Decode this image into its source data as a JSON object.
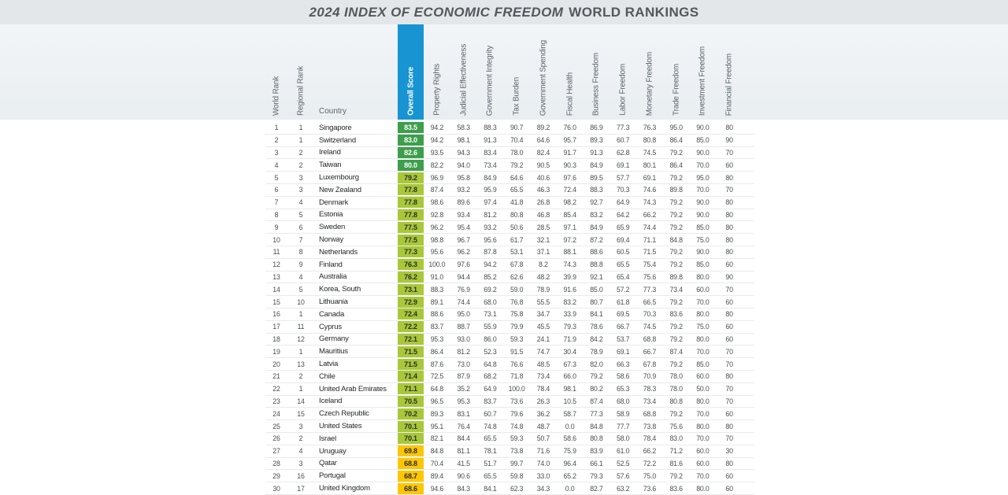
{
  "title": {
    "main": "2024 INDEX OF ECONOMIC FREEDOM",
    "suffix": "WORLD RANKINGS"
  },
  "colors": {
    "title_band_bg": "#e3e7e9",
    "header_band_bg": "#eef2f5",
    "header_highlight_blue": "#1794d1",
    "score_green_dark": "#3d9e4c",
    "score_green_dark_text": "#ffffff",
    "score_green_light": "#a9c839",
    "score_yellow": "#fcc605",
    "score_light_text": "#2c2e2f"
  },
  "chart_data": {
    "type": "table",
    "title": "2024 INDEX OF ECONOMIC FREEDOM WORLD RANKINGS",
    "legend_note": "Overall Score cell color tiers: high = dark green (80+), mid = light green (70-79.9), low = yellow (60-69.9)",
    "columns": [
      "World Rank",
      "Regional Rank",
      "Country",
      "Overall Score",
      "Property Rights",
      "Judicial Effectiveness",
      "Government Integrity",
      "Tax Burden",
      "Government Spending",
      "Fiscal Health",
      "Business Freedom",
      "Labor Freedom",
      "Monetary Freedom",
      "Trade Freedom",
      "Investment Freedom",
      "Financial Freedom"
    ],
    "rows": [
      {
        "world_rank": "1",
        "regional_rank": "1",
        "country": "Singapore",
        "overall_score": "83.5",
        "tier": "high",
        "values": [
          "94.2",
          "58.3",
          "88.3",
          "90.7",
          "89.2",
          "76.0",
          "86.9",
          "77.3",
          "76.3",
          "95.0",
          "90.0",
          "80"
        ]
      },
      {
        "world_rank": "2",
        "regional_rank": "1",
        "country": "Switzerland",
        "overall_score": "83.0",
        "tier": "high",
        "values": [
          "94.2",
          "98.1",
          "91.3",
          "70.4",
          "64.6",
          "95.7",
          "89.3",
          "60.7",
          "80.8",
          "86.4",
          "85.0",
          "90"
        ]
      },
      {
        "world_rank": "3",
        "regional_rank": "2",
        "country": "Ireland",
        "overall_score": "82.6",
        "tier": "high",
        "values": [
          "93.5",
          "94.3",
          "83.4",
          "78.0",
          "82.4",
          "91.7",
          "91.3",
          "62.8",
          "74.5",
          "79.2",
          "90.0",
          "70"
        ]
      },
      {
        "world_rank": "4",
        "regional_rank": "2",
        "country": "Taiwan",
        "overall_score": "80.0",
        "tier": "high",
        "values": [
          "82.2",
          "94.0",
          "73.4",
          "79.2",
          "90.5",
          "90.3",
          "84.9",
          "69.1",
          "80.1",
          "86.4",
          "70.0",
          "60"
        ]
      },
      {
        "world_rank": "5",
        "regional_rank": "3",
        "country": "Luxembourg",
        "overall_score": "79.2",
        "tier": "mid",
        "values": [
          "96.9",
          "95.8",
          "84.9",
          "64.6",
          "40.6",
          "97.6",
          "89.5",
          "57.7",
          "69.1",
          "79.2",
          "95.0",
          "80"
        ]
      },
      {
        "world_rank": "6",
        "regional_rank": "3",
        "country": "New Zealand",
        "overall_score": "77.8",
        "tier": "mid",
        "values": [
          "87.4",
          "93.2",
          "95.9",
          "65.5",
          "46.3",
          "72.4",
          "88.3",
          "70.3",
          "74.6",
          "89.8",
          "70.0",
          "70"
        ]
      },
      {
        "world_rank": "7",
        "regional_rank": "4",
        "country": "Denmark",
        "overall_score": "77.8",
        "tier": "mid",
        "values": [
          "98.6",
          "89.6",
          "97.4",
          "41.8",
          "26.8",
          "98.2",
          "92.7",
          "64.9",
          "74.3",
          "79.2",
          "90.0",
          "80"
        ]
      },
      {
        "world_rank": "8",
        "regional_rank": "5",
        "country": "Estonia",
        "overall_score": "77.8",
        "tier": "mid",
        "values": [
          "92.8",
          "93.4",
          "81.2",
          "80.8",
          "46.8",
          "85.4",
          "83.2",
          "64.2",
          "66.2",
          "79.2",
          "90.0",
          "80"
        ]
      },
      {
        "world_rank": "9",
        "regional_rank": "6",
        "country": "Sweden",
        "overall_score": "77.5",
        "tier": "mid",
        "values": [
          "96.2",
          "95.4",
          "93.2",
          "50.6",
          "28.5",
          "97.1",
          "84.9",
          "65.9",
          "74.4",
          "79.2",
          "85.0",
          "80"
        ]
      },
      {
        "world_rank": "10",
        "regional_rank": "7",
        "country": "Norway",
        "overall_score": "77.5",
        "tier": "mid",
        "values": [
          "98.8",
          "96.7",
          "95.6",
          "61.7",
          "32.1",
          "97.2",
          "87.2",
          "69.4",
          "71.1",
          "84.8",
          "75.0",
          "80"
        ]
      },
      {
        "world_rank": "11",
        "regional_rank": "8",
        "country": "Netherlands",
        "overall_score": "77.3",
        "tier": "mid",
        "values": [
          "95.6",
          "96.2",
          "87.8",
          "53.1",
          "37.1",
          "88.1",
          "88.6",
          "60.5",
          "71.5",
          "79.2",
          "90.0",
          "80"
        ]
      },
      {
        "world_rank": "12",
        "regional_rank": "9",
        "country": "Finland",
        "overall_score": "76.3",
        "tier": "mid",
        "values": [
          "100.0",
          "97.6",
          "94.2",
          "67.8",
          "8.2",
          "74.3",
          "88.8",
          "65.5",
          "75.4",
          "79.2",
          "85.0",
          "60"
        ]
      },
      {
        "world_rank": "13",
        "regional_rank": "4",
        "country": "Australia",
        "overall_score": "76.2",
        "tier": "mid",
        "values": [
          "91.0",
          "94.4",
          "85.2",
          "62.6",
          "48.2",
          "39.9",
          "92.1",
          "65.4",
          "75.6",
          "89.8",
          "80.0",
          "90"
        ]
      },
      {
        "world_rank": "14",
        "regional_rank": "5",
        "country": "Korea, South",
        "overall_score": "73.1",
        "tier": "mid",
        "values": [
          "88.3",
          "76.9",
          "69.2",
          "59.0",
          "78.9",
          "91.6",
          "85.0",
          "57.2",
          "77.3",
          "73.4",
          "60.0",
          "70"
        ]
      },
      {
        "world_rank": "15",
        "regional_rank": "10",
        "country": "Lithuania",
        "overall_score": "72.9",
        "tier": "mid",
        "values": [
          "89.1",
          "74.4",
          "68.0",
          "76.8",
          "55.5",
          "83.2",
          "80.7",
          "61.8",
          "66.5",
          "79.2",
          "70.0",
          "60"
        ]
      },
      {
        "world_rank": "16",
        "regional_rank": "1",
        "country": "Canada",
        "overall_score": "72.4",
        "tier": "mid",
        "values": [
          "88.6",
          "95.0",
          "73.1",
          "75.8",
          "34.7",
          "33.9",
          "84.1",
          "69.5",
          "70.3",
          "83.6",
          "80.0",
          "80"
        ]
      },
      {
        "world_rank": "17",
        "regional_rank": "11",
        "country": "Cyprus",
        "overall_score": "72.2",
        "tier": "mid",
        "values": [
          "83.7",
          "88.7",
          "55.9",
          "79.9",
          "45.5",
          "79.3",
          "78.6",
          "66.7",
          "74.5",
          "79.2",
          "75.0",
          "60"
        ]
      },
      {
        "world_rank": "18",
        "regional_rank": "12",
        "country": "Germany",
        "overall_score": "72.1",
        "tier": "mid",
        "values": [
          "95.3",
          "93.0",
          "86.0",
          "59.3",
          "24.1",
          "71.9",
          "84.2",
          "53.7",
          "68.8",
          "79.2",
          "80.0",
          "60"
        ]
      },
      {
        "world_rank": "19",
        "regional_rank": "1",
        "country": "Mauritius",
        "overall_score": "71.5",
        "tier": "mid",
        "values": [
          "86.4",
          "81.2",
          "52.3",
          "91.5",
          "74.7",
          "30.4",
          "78.9",
          "69.1",
          "66.7",
          "87.4",
          "70.0",
          "70"
        ]
      },
      {
        "world_rank": "20",
        "regional_rank": "13",
        "country": "Latvia",
        "overall_score": "71.5",
        "tier": "mid",
        "values": [
          "87.6",
          "73.0",
          "64.8",
          "76.6",
          "48.5",
          "67.3",
          "82.0",
          "66.3",
          "67.8",
          "79.2",
          "85.0",
          "70"
        ]
      },
      {
        "world_rank": "21",
        "regional_rank": "2",
        "country": "Chile",
        "overall_score": "71.4",
        "tier": "mid",
        "values": [
          "72.5",
          "87.9",
          "68.2",
          "71.8",
          "73.4",
          "66.0",
          "79.2",
          "58.6",
          "70.9",
          "78.0",
          "60.0",
          "80"
        ]
      },
      {
        "world_rank": "22",
        "regional_rank": "1",
        "country": "United Arab Emirates",
        "overall_score": "71.1",
        "tier": "mid",
        "values": [
          "64.8",
          "35.2",
          "64.9",
          "100.0",
          "78.4",
          "98.1",
          "80.2",
          "65.3",
          "78.3",
          "78.0",
          "50.0",
          "70"
        ]
      },
      {
        "world_rank": "23",
        "regional_rank": "14",
        "country": "Iceland",
        "overall_score": "70.5",
        "tier": "mid",
        "values": [
          "96.5",
          "95.3",
          "83.7",
          "73.6",
          "26.3",
          "10.5",
          "87.4",
          "68.0",
          "73.4",
          "80.8",
          "80.0",
          "70"
        ]
      },
      {
        "world_rank": "24",
        "regional_rank": "15",
        "country": "Czech Republic",
        "overall_score": "70.2",
        "tier": "mid",
        "values": [
          "89.3",
          "83.1",
          "60.7",
          "79.6",
          "36.2",
          "58.7",
          "77.3",
          "58.9",
          "68.8",
          "79.2",
          "70.0",
          "60"
        ]
      },
      {
        "world_rank": "25",
        "regional_rank": "3",
        "country": "United States",
        "overall_score": "70.1",
        "tier": "mid",
        "values": [
          "95.1",
          "76.4",
          "74.8",
          "74.8",
          "48.7",
          "0.0",
          "84.8",
          "77.7",
          "73.8",
          "75.6",
          "80.0",
          "80"
        ]
      },
      {
        "world_rank": "26",
        "regional_rank": "2",
        "country": "Israel",
        "overall_score": "70.1",
        "tier": "mid",
        "values": [
          "82.1",
          "84.4",
          "65.5",
          "59.3",
          "50.7",
          "58.6",
          "80.8",
          "58.0",
          "78.4",
          "83.0",
          "70.0",
          "70"
        ]
      },
      {
        "world_rank": "27",
        "regional_rank": "4",
        "country": "Uruguay",
        "overall_score": "69.8",
        "tier": "low",
        "values": [
          "84.8",
          "81.1",
          "78.1",
          "73.8",
          "71.6",
          "75.9",
          "83.9",
          "61.0",
          "66.2",
          "71.2",
          "60.0",
          "30"
        ]
      },
      {
        "world_rank": "28",
        "regional_rank": "3",
        "country": "Qatar",
        "overall_score": "68.8",
        "tier": "low",
        "values": [
          "70.4",
          "41.5",
          "51.7",
          "99.7",
          "74.0",
          "96.4",
          "66.1",
          "52.5",
          "72.2",
          "81.6",
          "60.0",
          "80"
        ]
      },
      {
        "world_rank": "29",
        "regional_rank": "16",
        "country": "Portugal",
        "overall_score": "68.7",
        "tier": "low",
        "values": [
          "89.4",
          "90.6",
          "65.5",
          "59.8",
          "33.0",
          "65.2",
          "79.3",
          "57.6",
          "75.0",
          "79.2",
          "70.0",
          "60"
        ]
      },
      {
        "world_rank": "30",
        "regional_rank": "17",
        "country": "United Kingdom",
        "overall_score": "68.6",
        "tier": "low",
        "values": [
          "94.6",
          "84.3",
          "84.1",
          "62.3",
          "34.3",
          "0.0",
          "82.7",
          "63.2",
          "73.6",
          "83.6",
          "80.0",
          "60"
        ]
      }
    ]
  }
}
